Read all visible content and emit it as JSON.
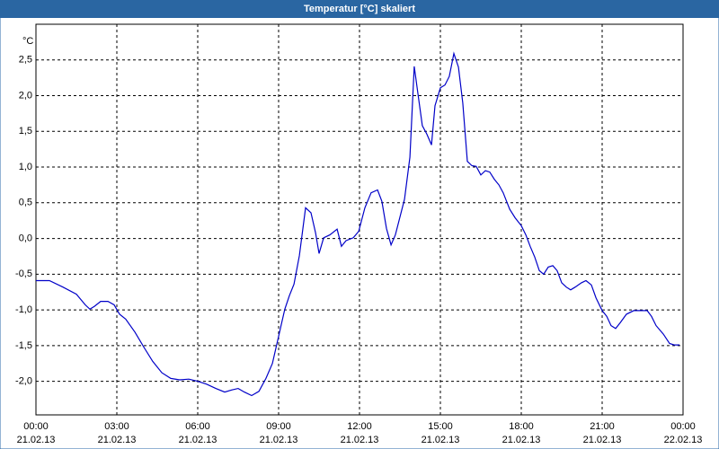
{
  "chart_data": {
    "type": "line",
    "title": "Temperatur [°C] skaliert",
    "y_label": "°C",
    "xlim": [
      0,
      24
    ],
    "ylim": [
      -2.47,
      3.0
    ],
    "xticks": [
      {
        "value": 0,
        "label": "00:00"
      },
      {
        "value": 3,
        "label": "03:00"
      },
      {
        "value": 6,
        "label": "06:00"
      },
      {
        "value": 9,
        "label": "09:00"
      },
      {
        "value": 12,
        "label": "12:00"
      },
      {
        "value": 15,
        "label": "15:00"
      },
      {
        "value": 18,
        "label": "18:00"
      },
      {
        "value": 21,
        "label": "21:00"
      },
      {
        "value": 24,
        "label": "00:00"
      }
    ],
    "xtick_dates": [
      "21.02.13",
      "21.02.13",
      "21.02.13",
      "21.02.13",
      "21.02.13",
      "21.02.13",
      "21.02.13",
      "21.02.13",
      "22.02.13"
    ],
    "yticks": [
      {
        "value": -2,
        "label": "-2,0"
      },
      {
        "value": -1.5,
        "label": "-1,5"
      },
      {
        "value": -1,
        "label": "-1,0"
      },
      {
        "value": -0.5,
        "label": "-0,5"
      },
      {
        "value": 0,
        "label": "0,0"
      },
      {
        "value": 0.5,
        "label": "0,5"
      },
      {
        "value": 1,
        "label": "1,0"
      },
      {
        "value": 1.5,
        "label": "1,5"
      },
      {
        "value": 2,
        "label": "2,0"
      },
      {
        "value": 2.5,
        "label": "2,5"
      }
    ],
    "grid": true,
    "color": "#0000c8",
    "x": [
      0,
      0.5,
      1,
      1.5,
      1.83,
      2,
      2.17,
      2.4,
      2.67,
      2.9,
      3.1,
      3.33,
      3.67,
      4,
      4.33,
      4.67,
      5,
      5.33,
      5.67,
      6,
      6.33,
      6.67,
      7,
      7.27,
      7.5,
      7.73,
      8,
      8.27,
      8.53,
      8.77,
      9,
      9.23,
      9.4,
      9.57,
      9.77,
      10,
      10.2,
      10.37,
      10.5,
      10.67,
      10.9,
      11.17,
      11.33,
      11.5,
      11.77,
      11.97,
      12.2,
      12.43,
      12.67,
      12.83,
      13,
      13.17,
      13.33,
      13.67,
      13.87,
      14.03,
      14.17,
      14.33,
      14.5,
      14.67,
      14.8,
      15,
      15.17,
      15.33,
      15.5,
      15.67,
      15.83,
      16,
      16.17,
      16.33,
      16.5,
      16.67,
      16.83,
      17,
      17.17,
      17.33,
      17.57,
      17.77,
      18,
      18.17,
      18.33,
      18.5,
      18.67,
      18.83,
      19,
      19.17,
      19.33,
      19.5,
      19.67,
      19.83,
      20,
      20.23,
      20.4,
      20.6,
      20.77,
      21,
      21.17,
      21.33,
      21.5,
      21.67,
      21.9,
      22.17,
      22.5,
      22.67,
      22.83,
      23,
      23.27,
      23.5,
      23.67,
      23.87
    ],
    "values": [
      -0.59,
      -0.59,
      -0.68,
      -0.78,
      -0.93,
      -0.99,
      -0.95,
      -0.88,
      -0.88,
      -0.93,
      -1.06,
      -1.13,
      -1.31,
      -1.52,
      -1.72,
      -1.88,
      -1.96,
      -1.98,
      -1.97,
      -2.0,
      -2.04,
      -2.1,
      -2.15,
      -2.12,
      -2.1,
      -2.15,
      -2.2,
      -2.14,
      -1.96,
      -1.75,
      -1.37,
      -0.99,
      -0.8,
      -0.64,
      -0.24,
      0.43,
      0.36,
      0.08,
      -0.21,
      0.01,
      0.05,
      0.13,
      -0.11,
      -0.03,
      0.01,
      0.1,
      0.43,
      0.64,
      0.68,
      0.52,
      0.14,
      -0.09,
      0.05,
      0.55,
      1.14,
      2.41,
      2.02,
      1.58,
      1.46,
      1.31,
      1.86,
      2.11,
      2.15,
      2.27,
      2.59,
      2.4,
      1.9,
      1.08,
      1.02,
      1.01,
      0.89,
      0.95,
      0.93,
      0.83,
      0.75,
      0.64,
      0.41,
      0.29,
      0.18,
      0.05,
      -0.11,
      -0.26,
      -0.45,
      -0.5,
      -0.4,
      -0.38,
      -0.45,
      -0.62,
      -0.68,
      -0.72,
      -0.68,
      -0.62,
      -0.59,
      -0.65,
      -0.83,
      -1.01,
      -1.09,
      -1.22,
      -1.26,
      -1.18,
      -1.06,
      -1.01,
      -1.01,
      -1.01,
      -1.09,
      -1.22,
      -1.34,
      -1.47,
      -1.49,
      -1.49
    ]
  }
}
